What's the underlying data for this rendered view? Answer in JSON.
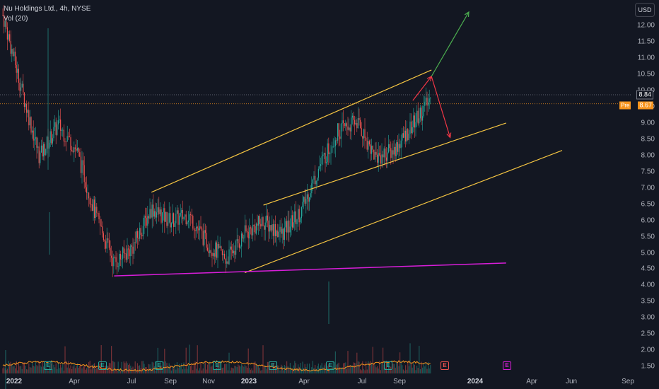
{
  "legend": {
    "symbol_line": "Nu Holdings Ltd., 4h, NYSE",
    "volume_line": "Vol (20)"
  },
  "currency_button": "USD",
  "y_axis": {
    "ticks": [
      "12.00",
      "11.50",
      "11.00",
      "10.50",
      "10.00",
      "9.50",
      "9.00",
      "8.50",
      "8.00",
      "7.50",
      "7.00",
      "6.50",
      "6.00",
      "5.50",
      "5.00",
      "4.50",
      "4.00",
      "3.50",
      "3.00",
      "2.50",
      "2.00",
      "1.50"
    ]
  },
  "x_axis": {
    "labels": [
      {
        "text": "2022",
        "bold": true
      },
      {
        "text": "Apr",
        "bold": false
      },
      {
        "text": "Jul",
        "bold": false
      },
      {
        "text": "Sep",
        "bold": false
      },
      {
        "text": "Nov",
        "bold": false
      },
      {
        "text": "2023",
        "bold": true
      },
      {
        "text": "Apr",
        "bold": false
      },
      {
        "text": "Jul",
        "bold": false
      },
      {
        "text": "Sep",
        "bold": false
      },
      {
        "text": "2024",
        "bold": true
      },
      {
        "text": "Apr",
        "bold": false
      },
      {
        "text": "Jun",
        "bold": false
      },
      {
        "text": "Sep",
        "bold": false
      }
    ]
  },
  "last_price": {
    "value": "8.84",
    "color": "#131722"
  },
  "pre_market": {
    "label": "Pre",
    "value": "8.67",
    "color": "#f7941d"
  },
  "earnings_markers": {
    "letter": "E"
  },
  "colors": {
    "up": "#26a69a",
    "down": "#ef5350",
    "channel": "#f5c542",
    "support": "#d81ed9",
    "volume_ma": "#f7941d",
    "arrow_up": "#4caf50",
    "arrow_down": "#f23645"
  },
  "chart_data": {
    "type": "candlestick",
    "title": "Nu Holdings Ltd., 4h, NYSE",
    "y_range": [
      1.3,
      12.3
    ],
    "price_path": [
      {
        "date": "2021-12",
        "price": 11.5
      },
      {
        "date": "2022-01",
        "price": 9.2
      },
      {
        "date": "2022-02",
        "price": 7.0
      },
      {
        "date": "2022-03",
        "price": 8.0
      },
      {
        "date": "2022-04",
        "price": 7.2
      },
      {
        "date": "2022-05",
        "price": 5.2
      },
      {
        "date": "2022-06",
        "price": 3.7
      },
      {
        "date": "2022-07",
        "price": 4.2
      },
      {
        "date": "2022-08",
        "price": 5.4
      },
      {
        "date": "2022-09",
        "price": 5.0
      },
      {
        "date": "2022-10",
        "price": 5.2
      },
      {
        "date": "2022-11",
        "price": 4.3
      },
      {
        "date": "2022-12",
        "price": 3.8
      },
      {
        "date": "2023-01",
        "price": 4.6
      },
      {
        "date": "2023-02",
        "price": 5.0
      },
      {
        "date": "2023-03",
        "price": 4.6
      },
      {
        "date": "2023-04",
        "price": 5.3
      },
      {
        "date": "2023-05",
        "price": 6.7
      },
      {
        "date": "2023-06",
        "price": 7.8
      },
      {
        "date": "2023-07",
        "price": 8.1
      },
      {
        "date": "2023-08",
        "price": 7.0
      },
      {
        "date": "2023-09",
        "price": 7.2
      },
      {
        "date": "2023-10",
        "price": 8.0
      },
      {
        "date": "2023-11",
        "price": 8.84
      }
    ],
    "drawings": {
      "channel_upper": [
        {
          "date": "2022-08",
          "price": 5.9
        },
        {
          "date": "2023-11",
          "price": 9.7
        }
      ],
      "channel_mid": [
        {
          "date": "2023-02",
          "price": 5.5
        },
        {
          "date": "2024-03",
          "price": 8.05
        }
      ],
      "channel_lower": [
        {
          "date": "2023-01",
          "price": 3.4
        },
        {
          "date": "2024-06",
          "price": 7.2
        }
      ],
      "support_line": [
        {
          "date": "2022-06",
          "price": 3.3
        },
        {
          "date": "2024-03",
          "price": 3.7
        }
      ],
      "projection_up": [
        {
          "date": "2023-11",
          "price": 9.5
        },
        {
          "date": "2024-01",
          "price": 11.5
        }
      ],
      "projection_down": [
        {
          "date": "2023-11",
          "price": 9.5
        },
        {
          "date": "2023-12",
          "price": 7.6
        }
      ]
    },
    "volume_ma_label": "Vol (20)"
  }
}
